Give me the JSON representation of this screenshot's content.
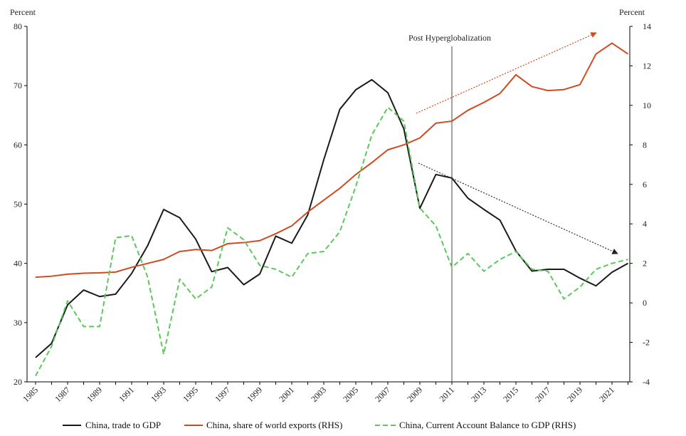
{
  "chart_data": {
    "type": "line",
    "y_left_label": "Percent",
    "y_right_label": "Percent",
    "ylim_left": [
      20,
      80
    ],
    "ylim_right": [
      -4,
      14
    ],
    "y_left_ticks": [
      20,
      30,
      40,
      50,
      60,
      70,
      80
    ],
    "y_right_ticks": [
      -4,
      -2,
      0,
      2,
      4,
      6,
      8,
      10,
      12,
      14
    ],
    "x_tick_labels": [
      "1985",
      "1987",
      "1989",
      "1991",
      "1993",
      "1995",
      "1997",
      "1999",
      "2001",
      "2003",
      "2005",
      "2007",
      "2009",
      "2011",
      "2013",
      "2015",
      "2017",
      "2019",
      "2021"
    ],
    "x": [
      1985,
      1986,
      1987,
      1988,
      1989,
      1990,
      1991,
      1992,
      1993,
      1994,
      1995,
      1996,
      1997,
      1998,
      1999,
      2000,
      2001,
      2002,
      2003,
      2004,
      2005,
      2006,
      2007,
      2008,
      2009,
      2010,
      2011,
      2012,
      2013,
      2014,
      2015,
      2016,
      2017,
      2018,
      2019,
      2020,
      2021,
      2022
    ],
    "annotation": "Post Hyperglobalization",
    "annotation_x": 2011,
    "grid": false,
    "legend_position": "bottom",
    "series": [
      {
        "name": "China, trade to GDP",
        "axis": "left",
        "color": "#1a1a1a",
        "style": "solid",
        "values": [
          24.1,
          26.5,
          33.0,
          35.5,
          34.4,
          34.8,
          38.3,
          43.0,
          49.1,
          47.7,
          44.1,
          38.6,
          39.3,
          36.4,
          38.2,
          44.6,
          43.4,
          48.2,
          57.5,
          66.0,
          69.3,
          71.0,
          68.8,
          62.7,
          49.3,
          55.0,
          54.4,
          51.0,
          49.1,
          47.3,
          42.1,
          38.7,
          39.0,
          39.0,
          37.5,
          36.2,
          38.5,
          40.0
        ]
      },
      {
        "name": "China, share of world exports (RHS)",
        "axis": "right",
        "color": "#d04a20",
        "style": "solid",
        "values": [
          1.3,
          1.35,
          1.45,
          1.5,
          1.52,
          1.56,
          1.8,
          2.0,
          2.2,
          2.6,
          2.7,
          2.65,
          3.0,
          3.05,
          3.15,
          3.5,
          3.9,
          4.6,
          5.2,
          5.8,
          6.5,
          7.1,
          7.75,
          8.0,
          8.35,
          9.1,
          9.2,
          9.75,
          10.15,
          10.6,
          11.55,
          10.95,
          10.75,
          10.8,
          11.05,
          12.6,
          13.15,
          12.6
        ]
      },
      {
        "name": "China, Current Account Balance to GDP (RHS)",
        "axis": "right",
        "color": "#5bc85b",
        "style": "dashed",
        "values": [
          -3.7,
          -2.2,
          0.1,
          -1.2,
          -1.2,
          3.3,
          3.4,
          1.3,
          -2.6,
          1.2,
          0.2,
          0.8,
          3.8,
          3.2,
          1.9,
          1.7,
          1.3,
          2.5,
          2.6,
          3.6,
          5.9,
          8.5,
          9.9,
          9.2,
          4.8,
          3.9,
          1.8,
          2.5,
          1.6,
          2.2,
          2.6,
          1.7,
          1.6,
          0.2,
          0.8,
          1.7,
          2.0,
          2.2
        ]
      }
    ]
  }
}
